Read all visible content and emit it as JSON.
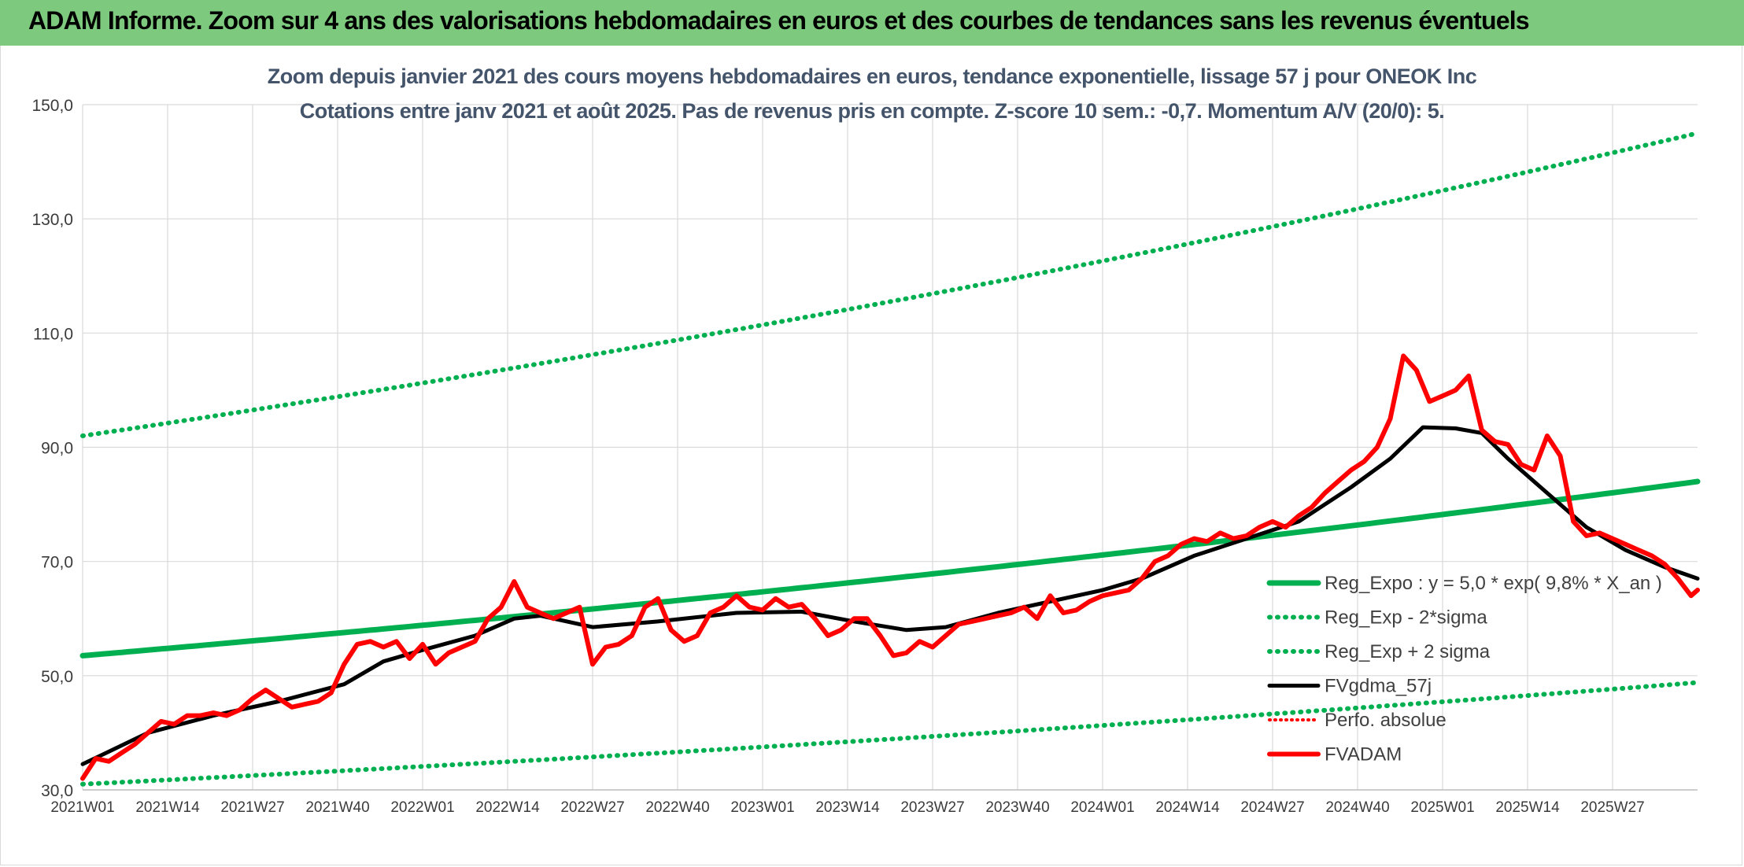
{
  "banner": {
    "title": "ADAM Informe. Zoom sur 4 ans des valorisations hebdomadaires en euros et des courbes de tendances sans les revenus éventuels"
  },
  "colors": {
    "banner_bg": "#7dc97d",
    "trend": "#00b050",
    "price": "#ff0000",
    "sma": "#000000",
    "grid": "#d9d9d9",
    "subtitle": "#44546a"
  },
  "chart_data": {
    "type": "line",
    "title_lines": [
      "Zoom depuis janvier 2021 des cours moyens hebdomadaires en euros, tendance exponentielle, lissage 57 j pour ONEOK Inc",
      "Cotations entre janv 2021 et août 2025. Pas de revenus pris en compte. Z-score 10 sem.: -0,7. Momentum A/V (20/0): 5."
    ],
    "ylim": [
      30,
      150
    ],
    "y_ticks": [
      30,
      50,
      70,
      90,
      110,
      130,
      150
    ],
    "y_tick_labels": [
      "30,0",
      "50,0",
      "70,0",
      "90,0",
      "110,0",
      "130,0",
      "150,0"
    ],
    "x_tick_labels": [
      "2021W01",
      "2021W14",
      "2021W27",
      "2021W40",
      "2022W01",
      "2022W14",
      "2022W27",
      "2022W40",
      "2023W01",
      "2023W14",
      "2023W27",
      "2023W40",
      "2024W01",
      "2024W14",
      "2024W27",
      "2024W40",
      "2025W01",
      "2025W14",
      "2025W27"
    ],
    "x_tick_week_index": [
      0,
      13,
      26,
      39,
      52,
      65,
      78,
      91,
      104,
      117,
      130,
      143,
      156,
      169,
      182,
      195,
      208,
      221,
      234
    ],
    "n_weeks": 248,
    "grid": true,
    "legend_position": "right",
    "trend_model": {
      "base": 5.0,
      "growth_pct": 9.8,
      "start": 53.5,
      "end": 84.0
    },
    "series": [
      {
        "name": "Reg_Expo : y = 5,0 * exp( 9,8% *  X_an )",
        "style": "trend",
        "start": 53.5,
        "end": 84.0
      },
      {
        "name": "Reg_Exp - 2*sigma",
        "style": "lower",
        "start": 31.0,
        "end": 48.8
      },
      {
        "name": "Reg_Exp + 2 sigma",
        "style": "upper",
        "start": 92.0,
        "end": 145.0
      },
      {
        "name": "FVgdma_57j",
        "style": "sma",
        "points": [
          [
            0,
            34.5
          ],
          [
            10,
            40
          ],
          [
            20,
            43
          ],
          [
            30,
            45.5
          ],
          [
            40,
            48.5
          ],
          [
            46,
            52.5
          ],
          [
            52,
            54.5
          ],
          [
            60,
            57
          ],
          [
            66,
            60
          ],
          [
            70,
            60.5
          ],
          [
            78,
            58.5
          ],
          [
            88,
            59.5
          ],
          [
            100,
            61
          ],
          [
            110,
            61.2
          ],
          [
            118,
            59.5
          ],
          [
            126,
            58
          ],
          [
            132,
            58.5
          ],
          [
            140,
            61
          ],
          [
            148,
            63
          ],
          [
            156,
            65
          ],
          [
            162,
            67
          ],
          [
            170,
            71
          ],
          [
            178,
            74
          ],
          [
            186,
            77
          ],
          [
            194,
            83
          ],
          [
            200,
            88
          ],
          [
            205,
            93.5
          ],
          [
            210,
            93.3
          ],
          [
            214,
            92.5
          ],
          [
            218,
            88
          ],
          [
            224,
            82
          ],
          [
            230,
            76
          ],
          [
            236,
            72
          ],
          [
            242,
            69
          ],
          [
            247,
            67
          ]
        ]
      },
      {
        "name": "Perfo. absolue",
        "style": "perfo",
        "points": []
      },
      {
        "name": "FVADAM",
        "style": "price",
        "points": [
          [
            0,
            32
          ],
          [
            2,
            35.5
          ],
          [
            4,
            35
          ],
          [
            6,
            36.5
          ],
          [
            8,
            38
          ],
          [
            10,
            40
          ],
          [
            12,
            42
          ],
          [
            14,
            41.5
          ],
          [
            16,
            43
          ],
          [
            18,
            43
          ],
          [
            20,
            43.5
          ],
          [
            22,
            43
          ],
          [
            24,
            44
          ],
          [
            26,
            46
          ],
          [
            28,
            47.5
          ],
          [
            30,
            46
          ],
          [
            32,
            44.5
          ],
          [
            34,
            45
          ],
          [
            36,
            45.5
          ],
          [
            38,
            47
          ],
          [
            40,
            52
          ],
          [
            42,
            55.5
          ],
          [
            44,
            56
          ],
          [
            46,
            55
          ],
          [
            48,
            56
          ],
          [
            50,
            53
          ],
          [
            52,
            55.5
          ],
          [
            54,
            52
          ],
          [
            56,
            54
          ],
          [
            58,
            55
          ],
          [
            60,
            56
          ],
          [
            62,
            60
          ],
          [
            64,
            62
          ],
          [
            66,
            66.5
          ],
          [
            68,
            62
          ],
          [
            70,
            61
          ],
          [
            72,
            60
          ],
          [
            74,
            61
          ],
          [
            76,
            62
          ],
          [
            78,
            52
          ],
          [
            80,
            55
          ],
          [
            82,
            55.5
          ],
          [
            84,
            57
          ],
          [
            86,
            62
          ],
          [
            88,
            63.5
          ],
          [
            90,
            58
          ],
          [
            92,
            56
          ],
          [
            94,
            57
          ],
          [
            96,
            61
          ],
          [
            98,
            62
          ],
          [
            100,
            64
          ],
          [
            102,
            62
          ],
          [
            104,
            61.5
          ],
          [
            106,
            63.5
          ],
          [
            108,
            62
          ],
          [
            110,
            62.5
          ],
          [
            112,
            60
          ],
          [
            114,
            57
          ],
          [
            116,
            58
          ],
          [
            118,
            60
          ],
          [
            120,
            60
          ],
          [
            122,
            57
          ],
          [
            124,
            53.5
          ],
          [
            126,
            54
          ],
          [
            128,
            56
          ],
          [
            130,
            55
          ],
          [
            132,
            57
          ],
          [
            134,
            59
          ],
          [
            136,
            59.5
          ],
          [
            138,
            60
          ],
          [
            140,
            60.5
          ],
          [
            142,
            61
          ],
          [
            144,
            62
          ],
          [
            146,
            60
          ],
          [
            148,
            64
          ],
          [
            150,
            61
          ],
          [
            152,
            61.5
          ],
          [
            154,
            63
          ],
          [
            156,
            64
          ],
          [
            158,
            64.5
          ],
          [
            160,
            65
          ],
          [
            162,
            67
          ],
          [
            164,
            70
          ],
          [
            166,
            71
          ],
          [
            168,
            73
          ],
          [
            170,
            74
          ],
          [
            172,
            73.5
          ],
          [
            174,
            75
          ],
          [
            176,
            74
          ],
          [
            178,
            74.5
          ],
          [
            180,
            76
          ],
          [
            182,
            77
          ],
          [
            184,
            76
          ],
          [
            186,
            78
          ],
          [
            188,
            79.5
          ],
          [
            190,
            82
          ],
          [
            192,
            84
          ],
          [
            194,
            86
          ],
          [
            196,
            87.5
          ],
          [
            198,
            90
          ],
          [
            200,
            95
          ],
          [
            202,
            106
          ],
          [
            204,
            103.5
          ],
          [
            206,
            98
          ],
          [
            208,
            99
          ],
          [
            210,
            100
          ],
          [
            212,
            102.5
          ],
          [
            214,
            93
          ],
          [
            216,
            91
          ],
          [
            218,
            90.5
          ],
          [
            220,
            87
          ],
          [
            222,
            86
          ],
          [
            224,
            92
          ],
          [
            226,
            88.5
          ],
          [
            228,
            77
          ],
          [
            230,
            74.5
          ],
          [
            232,
            75
          ],
          [
            234,
            74
          ],
          [
            236,
            73
          ],
          [
            238,
            72
          ],
          [
            240,
            71
          ],
          [
            242,
            69.5
          ],
          [
            244,
            67
          ],
          [
            246,
            64
          ],
          [
            247,
            65
          ]
        ]
      }
    ]
  }
}
